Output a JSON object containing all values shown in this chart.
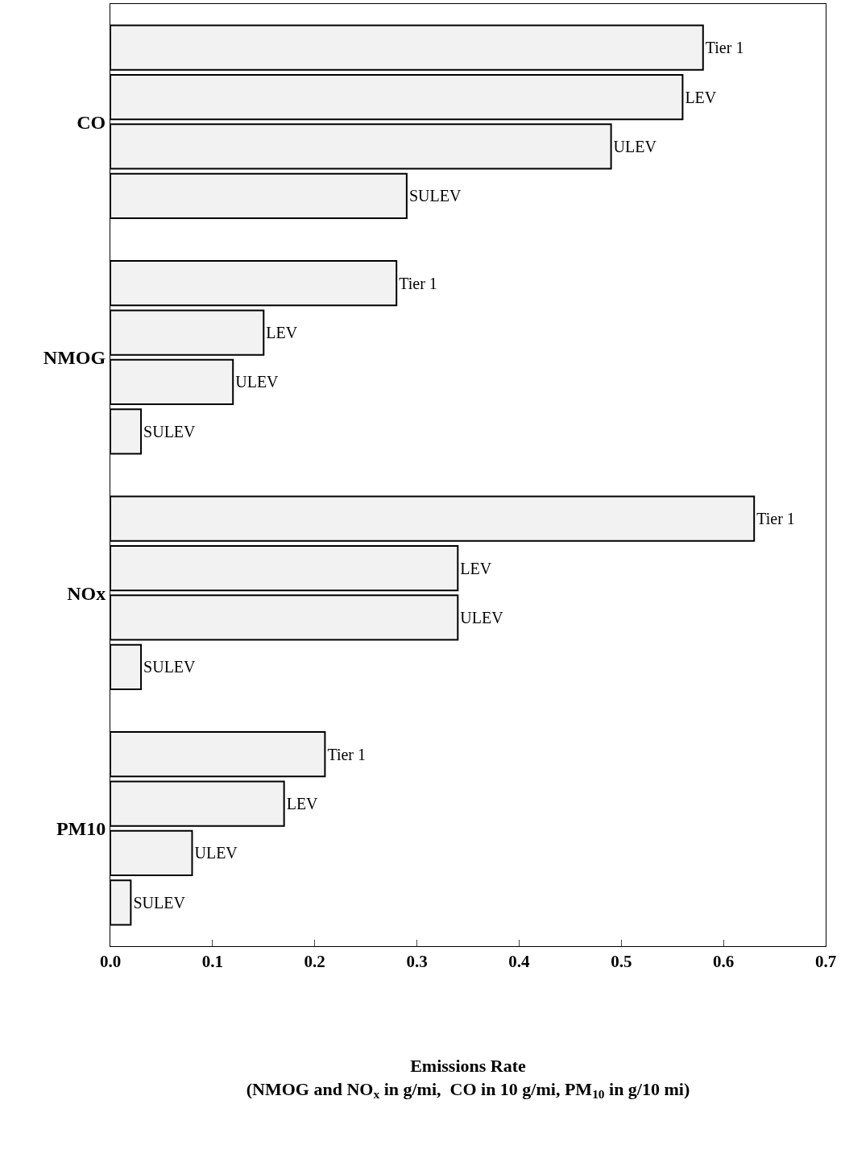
{
  "chart_data": {
    "type": "bar",
    "orientation": "horizontal",
    "categories": [
      "CO",
      "NMOG",
      "NOx",
      "PM10"
    ],
    "series": [
      {
        "name": "Tier 1",
        "color": "#f2f2f2",
        "values": [
          0.58,
          0.28,
          0.63,
          0.21
        ]
      },
      {
        "name": "LEV",
        "color": "#f2f2f2",
        "values": [
          0.56,
          0.15,
          0.34,
          0.17
        ]
      },
      {
        "name": "ULEV",
        "color": "#f2f2f2",
        "values": [
          0.49,
          0.12,
          0.34,
          0.08
        ]
      },
      {
        "name": "SULEV",
        "color": "#f2f2f2",
        "values": [
          0.29,
          0.03,
          0.03,
          0.02
        ]
      }
    ],
    "xlabel": "Emissions Rate\n(NMOG and NO$_{x}$ in g/mi,  CO in 10 g/mi, PM$_{10}$ in g/10 mi)",
    "xlim": [
      0,
      0.7
    ],
    "xticks": [
      {
        "value": 0,
        "label": "0.0"
      },
      {
        "value": 0.1,
        "label": "0.1"
      },
      {
        "value": 0.2,
        "label": "0.2"
      },
      {
        "value": 0.3,
        "label": "0.3"
      },
      {
        "value": 0.4,
        "label": "0.4"
      },
      {
        "value": 0.5,
        "label": "0.5"
      },
      {
        "value": 0.6,
        "label": "0.6"
      },
      {
        "value": 0.7,
        "label": "0.7"
      }
    ]
  }
}
